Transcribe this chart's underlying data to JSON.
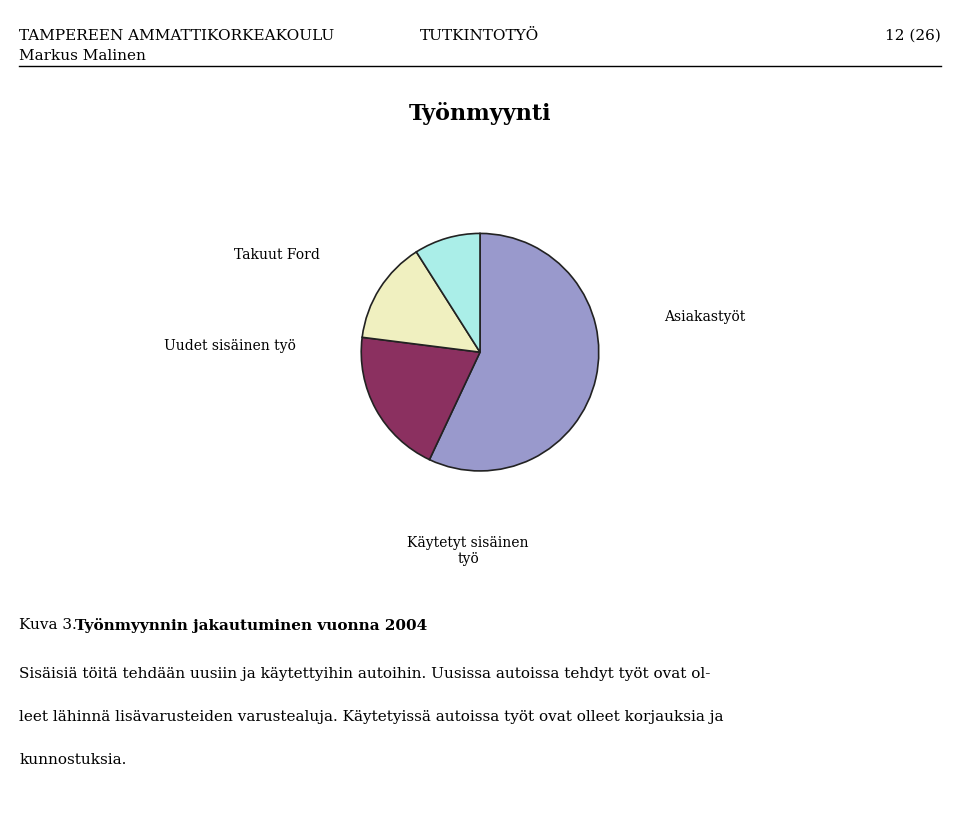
{
  "title": "Työnmyynti",
  "slices": [
    {
      "label": "Asiakastyöt",
      "value": 57,
      "color": "#9999CC"
    },
    {
      "label": "Käytetyt sisäinen\ntyö",
      "value": 20,
      "color": "#8B3060"
    },
    {
      "label": "Uudet sisäinen työ",
      "value": 14,
      "color": "#F0F0C0"
    },
    {
      "label": "Takuut Ford",
      "value": 9,
      "color": "#AAEEE8"
    }
  ],
  "header_left1": "TAMPEREEN AMMATTIKORKEAKOULU",
  "header_left2": "Markus Malinen",
  "header_center": "TUTKINTOTYÖ",
  "header_right": "12 (26)",
  "caption_normal": "Kuva 3. ",
  "caption_bold": "Työnmyynnin jakautuminen vuonna 2004",
  "body_lines": [
    "Sisäisiä töitä tehdään uusiin ja käytettyihin autoihin. Uusissa autoissa tehdyt työt ovat ol-",
    "leet lähinnä lisävarusteiden varustealuja. Käytetyissä autoissa työt ovat olleet korjauksia ja",
    "kunnostuksia."
  ],
  "startangle": 90,
  "edge_color": "#222222",
  "background_color": "#ffffff",
  "title_fontsize": 16,
  "label_fontsize": 10,
  "header_fontsize": 11,
  "body_fontsize": 11
}
